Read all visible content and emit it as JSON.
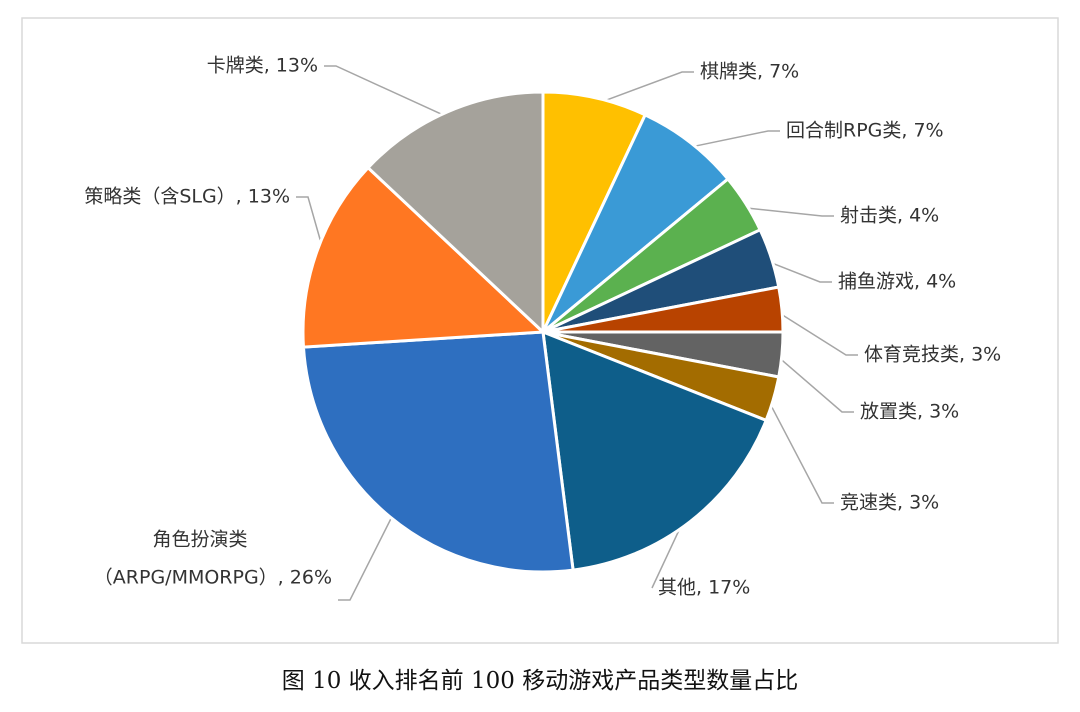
{
  "chart_data": {
    "type": "pie",
    "caption": "图 10 收入排名前 100 移动游戏产品类型数量占比",
    "values": [
      7,
      7,
      4,
      4,
      3,
      3,
      3,
      17,
      26,
      13,
      13
    ],
    "value_labels": [
      "棋牌类, 7%",
      "回合制RPG类, 7%",
      "射击类, 4%",
      "捕鱼游戏, 4%",
      "体育竞技类, 3%",
      "放置类, 3%",
      "竞速类, 3%",
      "其他, 17%",
      [
        "角色扮演类",
        "（ARPG/MMORPG）, 26%"
      ],
      "策略类（含SLG）, 13%",
      "卡牌类, 13%"
    ],
    "colors": [
      "#FFC000",
      "#3A9AD6",
      "#5BB14F",
      "#1F4E79",
      "#B84300",
      "#636363",
      "#A36C00",
      "#0E5E8A",
      "#2E6FC0",
      "#FF7722",
      "#A5A29B"
    ]
  }
}
